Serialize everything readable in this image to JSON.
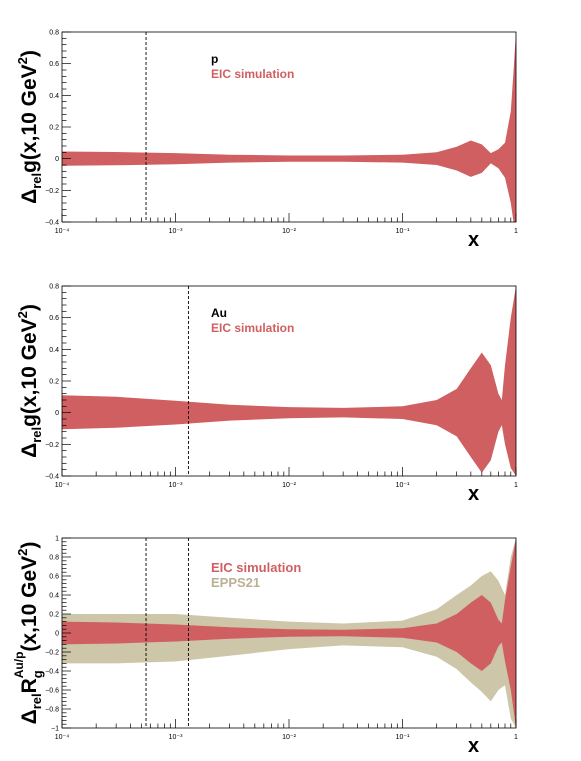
{
  "chart_data": [
    {
      "type": "area",
      "xscale": "log",
      "xlim": [
        0.0001,
        1
      ],
      "ylim": [
        -0.4,
        0.8
      ],
      "yticks": [
        -0.4,
        -0.2,
        0,
        0.2,
        0.4,
        0.6,
        0.8
      ],
      "ytick_labels": [
        "−0.4",
        "−0.2",
        "0",
        "0.2",
        "0.4",
        "0.6",
        "0.8"
      ],
      "xtick_labels": [
        "10⁻⁴",
        "10⁻³",
        "10⁻²",
        "10⁻¹",
        "1"
      ],
      "xlabel": "x",
      "ylabel": "Δrel g(x,10 GeV²)",
      "ylabel_parts": {
        "delta": "Δ",
        "sub": "rel",
        "func": "g",
        "args": "(x,10 GeV",
        "sup": "2",
        "close": ")"
      },
      "annotations": [
        "p",
        "EIC simulation"
      ],
      "vlines_x": [
        0.00055
      ],
      "series": [
        {
          "name": "EIC simulation",
          "color": "#d05f62",
          "x": [
            0.0001,
            0.0003,
            0.001,
            0.003,
            0.01,
            0.03,
            0.1,
            0.2,
            0.3,
            0.4,
            0.5,
            0.6,
            0.7,
            0.8,
            0.9,
            0.95,
            1.0
          ],
          "upper": [
            0.045,
            0.042,
            0.035,
            0.025,
            0.02,
            0.02,
            0.025,
            0.04,
            0.075,
            0.115,
            0.09,
            0.035,
            0.06,
            0.1,
            0.3,
            0.55,
            0.8
          ],
          "lower": [
            -0.045,
            -0.042,
            -0.035,
            -0.025,
            -0.02,
            -0.02,
            -0.025,
            -0.04,
            -0.075,
            -0.115,
            -0.09,
            -0.03,
            -0.06,
            -0.12,
            -0.28,
            -0.4,
            -0.4
          ]
        }
      ]
    },
    {
      "type": "area",
      "xscale": "log",
      "xlim": [
        0.0001,
        1
      ],
      "ylim": [
        -0.4,
        0.8
      ],
      "yticks": [
        -0.4,
        -0.2,
        0,
        0.2,
        0.4,
        0.6,
        0.8
      ],
      "ytick_labels": [
        "−0.4",
        "−0.2",
        "0",
        "0.2",
        "0.4",
        "0.6",
        "0.8"
      ],
      "xtick_labels": [
        "10⁻⁴",
        "10⁻³",
        "10⁻²",
        "10⁻¹",
        "1"
      ],
      "xlabel": "x",
      "ylabel": "Δrel g(x,10 GeV²)",
      "ylabel_parts": {
        "delta": "Δ",
        "sub": "rel",
        "func": "g",
        "args": "(x,10 GeV",
        "sup": "2",
        "close": ")"
      },
      "annotations": [
        "Au",
        "EIC simulation"
      ],
      "vlines_x": [
        0.0013
      ],
      "series": [
        {
          "name": "EIC simulation",
          "color": "#d05f62",
          "x": [
            0.0001,
            0.0003,
            0.001,
            0.003,
            0.01,
            0.03,
            0.1,
            0.2,
            0.3,
            0.4,
            0.5,
            0.6,
            0.7,
            0.75,
            0.8,
            0.9,
            1.0
          ],
          "upper": [
            0.11,
            0.1,
            0.075,
            0.05,
            0.035,
            0.03,
            0.04,
            0.08,
            0.15,
            0.28,
            0.38,
            0.3,
            0.12,
            0.08,
            0.3,
            0.6,
            0.8
          ],
          "lower": [
            -0.105,
            -0.095,
            -0.075,
            -0.05,
            -0.035,
            -0.03,
            -0.04,
            -0.08,
            -0.15,
            -0.28,
            -0.38,
            -0.3,
            -0.12,
            -0.08,
            -0.2,
            -0.35,
            -0.4
          ]
        }
      ]
    },
    {
      "type": "area",
      "xscale": "log",
      "xlim": [
        0.0001,
        1
      ],
      "ylim": [
        -1,
        1
      ],
      "yticks": [
        -1,
        -0.8,
        -0.6,
        -0.4,
        -0.2,
        0,
        0.2,
        0.4,
        0.6,
        0.8,
        1
      ],
      "ytick_labels": [
        "−1",
        "−0.8",
        "−0.6",
        "−0.4",
        "−0.2",
        "0",
        "0.2",
        "0.4",
        "0.6",
        "0.8",
        "1"
      ],
      "xtick_labels": [
        "10⁻⁴",
        "10⁻³",
        "10⁻²",
        "10⁻¹",
        "1"
      ],
      "xlabel": "x",
      "ylabel": "Δrel Rg^Au/p(x,10 GeV²)",
      "ylabel_parts": {
        "delta": "Δ",
        "sub": "rel",
        "func": "R",
        "sub2": "g",
        "sup2": "Au/p",
        "args": "(x,10 GeV",
        "sup": "2",
        "close": ")"
      },
      "annotations": [
        "EIC simulation",
        "EPPS21"
      ],
      "vlines_x": [
        0.00055,
        0.0013
      ],
      "series": [
        {
          "name": "EPPS21",
          "color": "#cdc6a9",
          "x": [
            0.0001,
            0.0003,
            0.001,
            0.003,
            0.01,
            0.03,
            0.1,
            0.2,
            0.3,
            0.4,
            0.5,
            0.6,
            0.7,
            0.8,
            0.9,
            1.0
          ],
          "upper": [
            0.2,
            0.2,
            0.2,
            0.16,
            0.12,
            0.1,
            0.13,
            0.25,
            0.4,
            0.5,
            0.6,
            0.65,
            0.55,
            0.4,
            0.8,
            1.0
          ],
          "lower": [
            -0.32,
            -0.32,
            -0.3,
            -0.24,
            -0.17,
            -0.13,
            -0.15,
            -0.25,
            -0.38,
            -0.52,
            -0.62,
            -0.72,
            -0.6,
            -0.55,
            -0.9,
            -1.0
          ]
        },
        {
          "name": "EIC simulation",
          "color": "#d05f62",
          "x": [
            0.0001,
            0.0003,
            0.001,
            0.003,
            0.01,
            0.03,
            0.1,
            0.2,
            0.3,
            0.4,
            0.5,
            0.6,
            0.7,
            0.75,
            0.8,
            0.9,
            1.0
          ],
          "upper": [
            0.12,
            0.11,
            0.09,
            0.06,
            0.04,
            0.035,
            0.05,
            0.1,
            0.2,
            0.32,
            0.4,
            0.32,
            0.14,
            0.1,
            0.35,
            0.7,
            1.0
          ],
          "lower": [
            -0.12,
            -0.11,
            -0.09,
            -0.06,
            -0.04,
            -0.035,
            -0.05,
            -0.1,
            -0.2,
            -0.32,
            -0.4,
            -0.32,
            -0.14,
            -0.1,
            -0.3,
            -0.6,
            -1.0
          ]
        }
      ]
    }
  ]
}
